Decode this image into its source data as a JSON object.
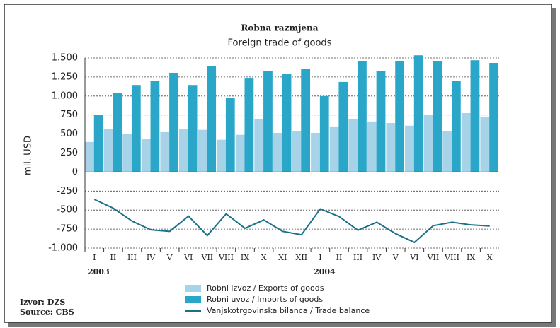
{
  "chart_data": {
    "type": "bar",
    "title": "Robna razmjena",
    "subtitle": "Foreign trade of goods",
    "y_label": "mil. USD",
    "categories": [
      "I",
      "II",
      "III",
      "IV",
      "V",
      "VI",
      "VII",
      "VIII",
      "IX",
      "X",
      "XI",
      "XII",
      "I",
      "II",
      "III",
      "IV",
      "V",
      "VI",
      "VII",
      "VIII",
      "IX",
      "X"
    ],
    "years": [
      "2003",
      "2004"
    ],
    "series": [
      {
        "name": "Robni izvoz / Exports of goods",
        "type": "bar",
        "color": "#a6d3e8",
        "values": [
          395,
          565,
          500,
          435,
          525,
          565,
          555,
          425,
          490,
          695,
          515,
          535,
          515,
          600,
          695,
          665,
          645,
          610,
          750,
          535,
          775,
          725
        ]
      },
      {
        "name": "Robni uvoz / Imports of goods",
        "type": "bar",
        "color": "#2aa6c8",
        "values": [
          755,
          1040,
          1145,
          1195,
          1305,
          1145,
          1390,
          975,
          1230,
          1325,
          1295,
          1360,
          1000,
          1185,
          1460,
          1325,
          1455,
          1535,
          1455,
          1195,
          1470,
          1435
        ]
      },
      {
        "name": "Vanjskotrgovinska bilanca / Trade balance",
        "type": "line",
        "color": "#1a6f8a",
        "values": [
          -360,
          -475,
          -645,
          -760,
          -780,
          -580,
          -835,
          -550,
          -740,
          -630,
          -780,
          -825,
          -485,
          -585,
          -765,
          -660,
          -810,
          -925,
          -705,
          -660,
          -695,
          -710
        ]
      }
    ],
    "ylim": [
      -1000,
      1500
    ],
    "yticks": [
      {
        "value": 1500,
        "label": "1.500"
      },
      {
        "value": 1250,
        "label": "1.250"
      },
      {
        "value": 1000,
        "label": "1.000"
      },
      750,
      500,
      250,
      0,
      -250,
      -500,
      -750,
      {
        "value": -1000,
        "label": "-1.000"
      }
    ],
    "grid": true,
    "source": [
      "Izvor: DZS",
      "Source: CBS"
    ]
  }
}
